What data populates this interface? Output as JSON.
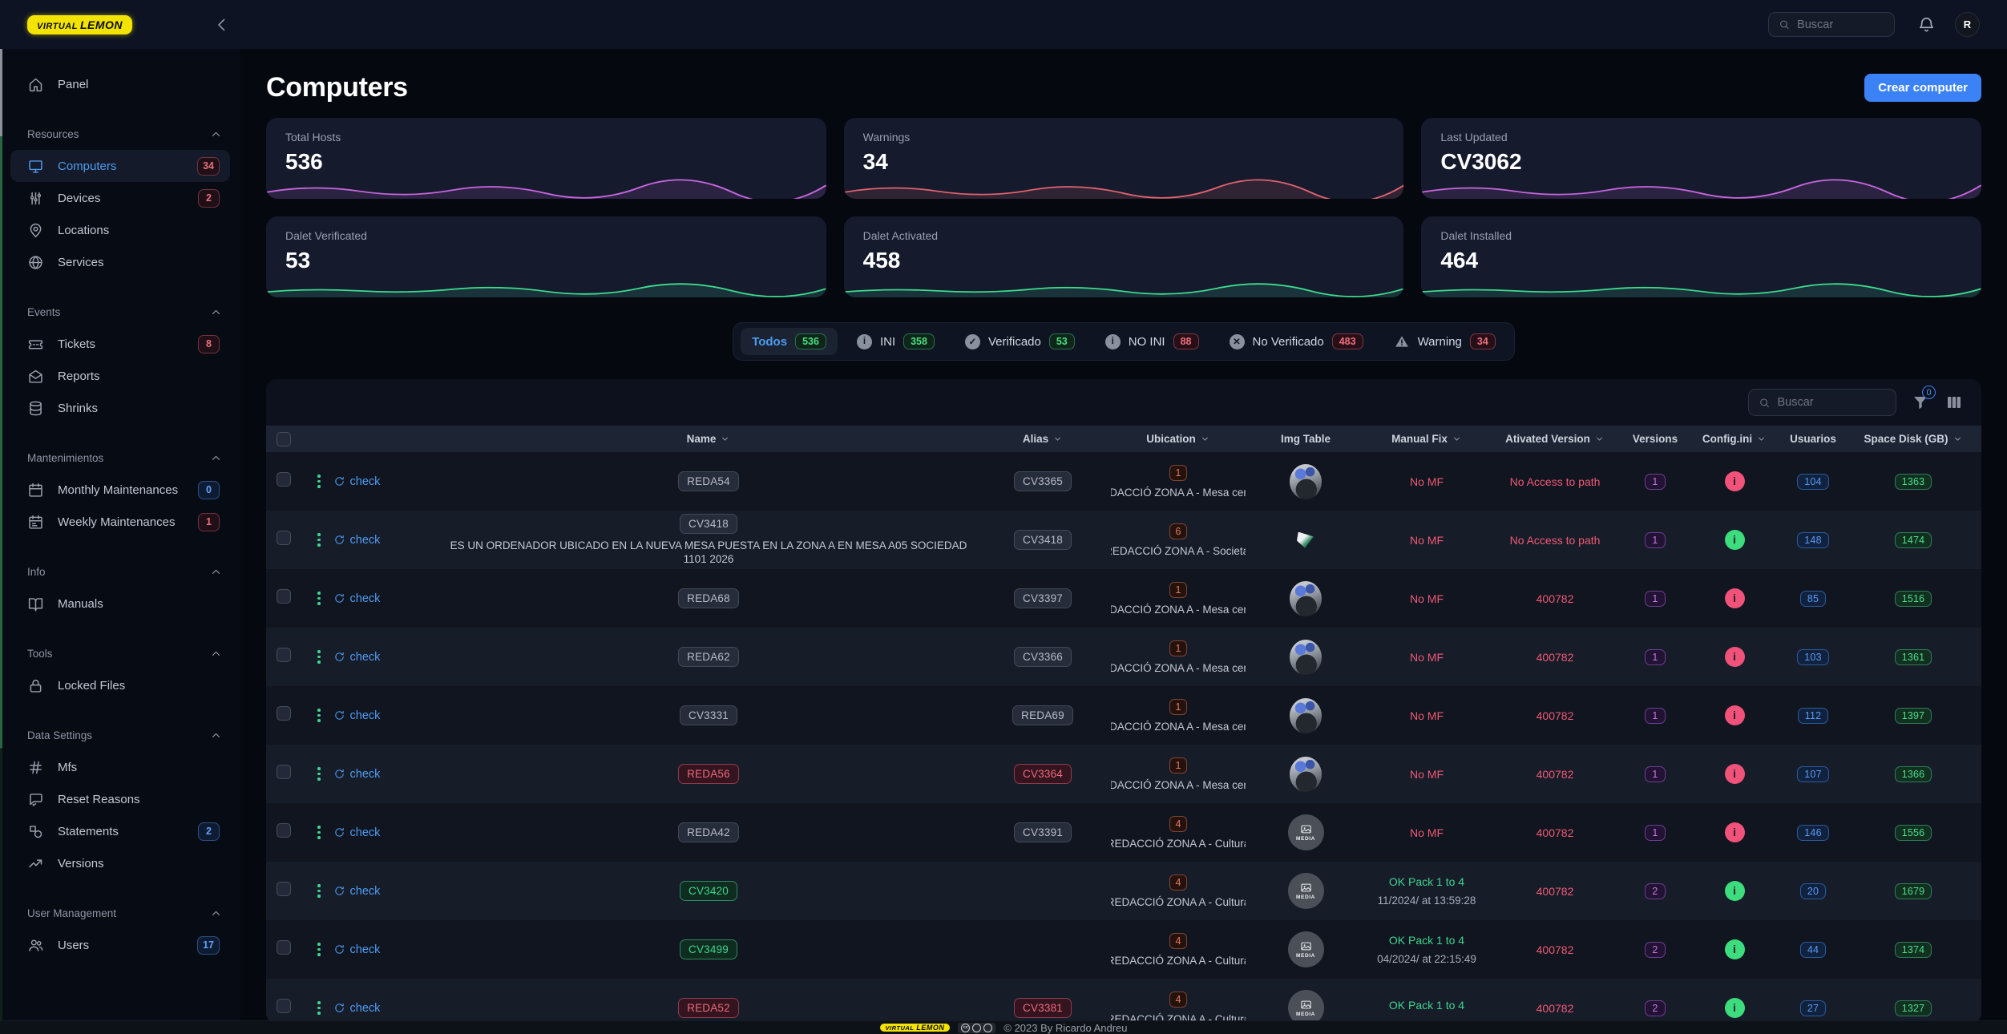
{
  "topbar": {
    "logo": {
      "first": "VIRTUAL",
      "second": "LEMON"
    },
    "search": {
      "placeholder": "Buscar"
    },
    "avatar_initial": "R"
  },
  "sidebar": {
    "sections": [
      {
        "title": null,
        "items": [
          {
            "label": "Panel",
            "icon": "home"
          }
        ]
      },
      {
        "title": "Resources",
        "items": [
          {
            "label": "Computers",
            "icon": "monitor",
            "active": true,
            "badge": {
              "text": "34",
              "color": "red"
            }
          },
          {
            "label": "Devices",
            "icon": "sliders",
            "badge": {
              "text": "2",
              "color": "red"
            }
          },
          {
            "label": "Locations",
            "icon": "map-pin"
          },
          {
            "label": "Services",
            "icon": "globe"
          }
        ]
      },
      {
        "title": "Events",
        "items": [
          {
            "label": "Tickets",
            "icon": "ticket",
            "badge": {
              "text": "8",
              "color": "red"
            }
          },
          {
            "label": "Reports",
            "icon": "mail-open"
          },
          {
            "label": "Shrinks",
            "icon": "database"
          }
        ]
      },
      {
        "title": "Mantenimientos",
        "items": [
          {
            "label": "Monthly Maintenances",
            "icon": "calendar",
            "badge": {
              "text": "0",
              "color": "blue"
            }
          },
          {
            "label": "Weekly Maintenances",
            "icon": "calendar-lines",
            "badge": {
              "text": "1",
              "color": "red"
            }
          }
        ]
      },
      {
        "title": "Info",
        "items": [
          {
            "label": "Manuals",
            "icon": "book-open"
          }
        ]
      },
      {
        "title": "Tools",
        "items": [
          {
            "label": "Locked Files",
            "icon": "lock"
          }
        ]
      },
      {
        "title": "Data Settings",
        "items": [
          {
            "label": "Mfs",
            "icon": "hash"
          },
          {
            "label": "Reset Reasons",
            "icon": "chat"
          },
          {
            "label": "Statements",
            "icon": "shapes",
            "badge": {
              "text": "2",
              "color": "blue"
            }
          },
          {
            "label": "Versions",
            "icon": "trend-up"
          }
        ]
      },
      {
        "title": "User Management",
        "items": [
          {
            "label": "Users",
            "icon": "users",
            "badge": {
              "text": "17",
              "color": "blue"
            }
          }
        ]
      }
    ]
  },
  "page": {
    "title": "Computers",
    "create_button": "Crear computer"
  },
  "stats_cards": [
    {
      "label": "Total Hosts",
      "value": "536",
      "line_color": "#c966e0"
    },
    {
      "label": "Warnings",
      "value": "34",
      "line_color": "#e0636f"
    },
    {
      "label": "Last Updated",
      "value": "CV3062",
      "line_color": "#c966e0"
    },
    {
      "label": "Dalet Verificated",
      "value": "53",
      "line_color": "#3ddc8f"
    },
    {
      "label": "Dalet Activated",
      "value": "458",
      "line_color": "#3ddc8f"
    },
    {
      "label": "Dalet Installed",
      "value": "464",
      "line_color": "#3ddc8f"
    }
  ],
  "filters": [
    {
      "label": "Todos",
      "count": "536",
      "count_color": "green",
      "icon": null,
      "active": true
    },
    {
      "label": "INI",
      "count": "358",
      "count_color": "green",
      "icon": "info"
    },
    {
      "label": "Verificado",
      "count": "53",
      "count_color": "green",
      "icon": "check"
    },
    {
      "label": "NO INI",
      "count": "88",
      "count_color": "red",
      "icon": "info"
    },
    {
      "label": "No Verificado",
      "count": "483",
      "count_color": "red",
      "icon": "x"
    },
    {
      "label": "Warning",
      "count": "34",
      "count_color": "red",
      "icon": "warning"
    }
  ],
  "table": {
    "toolbar": {
      "search_placeholder": "Buscar",
      "filter_badge": "0"
    },
    "actions_label": "check",
    "columns": [
      {
        "label": "Name",
        "sortable": true
      },
      {
        "label": "Alias",
        "sortable": true
      },
      {
        "label": "Ubication",
        "sortable": true
      },
      {
        "label": "Img Table",
        "sortable": false
      },
      {
        "label": "Manual Fix",
        "sortable": true
      },
      {
        "label": "Ativated Version",
        "sortable": true
      },
      {
        "label": "Versions",
        "sortable": false
      },
      {
        "label": "Config.ini",
        "sortable": true
      },
      {
        "label": "Usuarios",
        "sortable": false
      },
      {
        "label": "Space Disk (GB)",
        "sortable": true
      }
    ],
    "rows": [
      {
        "name": "REDA54",
        "name_color": "gray",
        "desc": null,
        "alias": "CV3365",
        "alias_color": "gray",
        "location_count": "1",
        "location": "REDACCIÓ ZONA A - Mesa centro",
        "img": "photo",
        "manual_fix": "No MF",
        "manual_fix_ok": false,
        "manual_fix_date": null,
        "activated_version": "No Access to path",
        "versions": "1",
        "config_status": "red",
        "usuarios": "104",
        "space_disk": "1363"
      },
      {
        "name": "CV3418",
        "name_color": "gray",
        "desc": "ES UN ORDENADOR UBICADO EN LA NUEVA MESA PUESTA EN LA ZONA A EN MESA A05 SOCIEDAD 1101 2026",
        "alias": "CV3418",
        "alias_color": "gray",
        "location_count": "6",
        "location": "REDACCIÓ ZONA A - Societat",
        "img": "mini",
        "manual_fix": "No MF",
        "manual_fix_ok": false,
        "manual_fix_date": null,
        "activated_version": "No Access to path",
        "versions": "1",
        "config_status": "green",
        "usuarios": "148",
        "space_disk": "1474"
      },
      {
        "name": "REDA68",
        "name_color": "gray",
        "desc": null,
        "alias": "CV3397",
        "alias_color": "gray",
        "location_count": "1",
        "location": "REDACCIÓ ZONA A - Mesa centro",
        "img": "photo",
        "manual_fix": "No MF",
        "manual_fix_ok": false,
        "manual_fix_date": null,
        "activated_version": "400782",
        "versions": "1",
        "config_status": "red",
        "usuarios": "85",
        "space_disk": "1516"
      },
      {
        "name": "REDA62",
        "name_color": "gray",
        "desc": null,
        "alias": "CV3366",
        "alias_color": "gray",
        "location_count": "1",
        "location": "REDACCIÓ ZONA A - Mesa centro",
        "img": "photo",
        "manual_fix": "No MF",
        "manual_fix_ok": false,
        "manual_fix_date": null,
        "activated_version": "400782",
        "versions": "1",
        "config_status": "red",
        "usuarios": "103",
        "space_disk": "1361"
      },
      {
        "name": "CV3331",
        "name_color": "gray",
        "desc": null,
        "alias": "REDA69",
        "alias_color": "gray",
        "location_count": "1",
        "location": "REDACCIÓ ZONA A - Mesa centro",
        "img": "photo",
        "manual_fix": "No MF",
        "manual_fix_ok": false,
        "manual_fix_date": null,
        "activated_version": "400782",
        "versions": "1",
        "config_status": "red",
        "usuarios": "112",
        "space_disk": "1397"
      },
      {
        "name": "REDA56",
        "name_color": "red",
        "desc": null,
        "alias": "CV3364",
        "alias_color": "red",
        "location_count": "1",
        "location": "REDACCIÓ ZONA A - Mesa centro",
        "img": "photo",
        "manual_fix": "No MF",
        "manual_fix_ok": false,
        "manual_fix_date": null,
        "activated_version": "400782",
        "versions": "1",
        "config_status": "red",
        "usuarios": "107",
        "space_disk": "1366"
      },
      {
        "name": "REDA42",
        "name_color": "gray",
        "desc": null,
        "alias": "CV3391",
        "alias_color": "gray",
        "location_count": "4",
        "location": "REDACCIÓ ZONA A - Cultura",
        "img": "media",
        "manual_fix": "No MF",
        "manual_fix_ok": false,
        "manual_fix_date": null,
        "activated_version": "400782",
        "versions": "1",
        "config_status": "red",
        "usuarios": "146",
        "space_disk": "1556"
      },
      {
        "name": "CV3420",
        "name_color": "green",
        "desc": null,
        "alias": null,
        "alias_color": "gray",
        "location_count": "4",
        "location": "REDACCIÓ ZONA A - Cultura",
        "img": "media",
        "manual_fix": "OK Pack 1 to 4",
        "manual_fix_ok": true,
        "manual_fix_date": "11/2024/ at 13:59:28",
        "activated_version": "400782",
        "versions": "2",
        "config_status": "green",
        "usuarios": "20",
        "space_disk": "1679"
      },
      {
        "name": "CV3499",
        "name_color": "green",
        "desc": null,
        "alias": null,
        "alias_color": "gray",
        "location_count": "4",
        "location": "REDACCIÓ ZONA A - Cultura",
        "img": "media",
        "manual_fix": "OK Pack 1 to 4",
        "manual_fix_ok": true,
        "manual_fix_date": "04/2024/ at 22:15:49",
        "activated_version": "400782",
        "versions": "2",
        "config_status": "green",
        "usuarios": "44",
        "space_disk": "1374"
      },
      {
        "name": "REDA52",
        "name_color": "red",
        "desc": null,
        "alias": "CV3381",
        "alias_color": "red",
        "location_count": "4",
        "location": "REDACCIÓ ZONA A - Cultura",
        "img": "media",
        "manual_fix": "OK Pack 1 to 4",
        "manual_fix_ok": true,
        "manual_fix_date": "",
        "activated_version": "400782",
        "versions": "2",
        "config_status": "green",
        "usuarios": "27",
        "space_disk": "1327"
      }
    ]
  },
  "footer": {
    "logo": {
      "first": "VIRTUAL",
      "second": "LEMON"
    },
    "copyright": "© 2023 By Ricardo Andreu"
  }
}
